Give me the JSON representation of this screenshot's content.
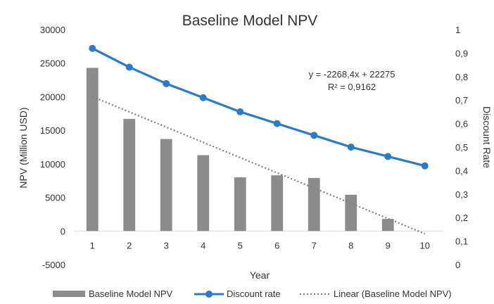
{
  "chart_data": {
    "type": "bar",
    "title": "Baseline Model NPV",
    "xlabel": "Year",
    "ylabel": "NPV (Million USD)",
    "y2label": "Discount Rate",
    "categories": [
      "1",
      "2",
      "3",
      "4",
      "5",
      "6",
      "7",
      "8",
      "9",
      "10"
    ],
    "ylim": [
      -5000,
      30000
    ],
    "yticks": [
      -5000,
      0,
      5000,
      10000,
      15000,
      20000,
      25000,
      30000
    ],
    "ytick_labels": [
      "-5000",
      "0",
      "5000",
      "10000",
      "15000",
      "20000",
      "25000",
      "30000"
    ],
    "y2lim": [
      0,
      1
    ],
    "y2ticks": [
      0,
      0.1,
      0.2,
      0.3,
      0.4,
      0.5,
      0.6,
      0.7,
      0.8,
      0.9,
      1
    ],
    "y2tick_labels": [
      "0",
      "0,1",
      "0,2",
      "0,3",
      "0,4",
      "0,5",
      "0,6",
      "0,7",
      "0,8",
      "0,9",
      "1"
    ],
    "series": [
      {
        "name": "Baseline Model NPV",
        "type": "bar",
        "axis": "left",
        "values": [
          24300,
          16700,
          13700,
          11300,
          8000,
          8300,
          7900,
          5400,
          1800,
          0
        ]
      },
      {
        "name": "Discount rate",
        "type": "line",
        "axis": "right",
        "values": [
          0.92,
          0.84,
          0.77,
          0.71,
          0.65,
          0.6,
          0.55,
          0.5,
          0.46,
          0.42
        ]
      }
    ],
    "trendline": {
      "name": "Linear (Baseline Model NPV)",
      "slope": -2268.4,
      "intercept": 22275,
      "x_range": [
        1,
        10
      ],
      "equation_label": "y = -2268,4x + 22275",
      "r2_label": "R² = 0,9162"
    },
    "legend_position": "bottom",
    "colors": {
      "bar": "#8c8c8c",
      "line": "#2b7bc8",
      "trend": "#7f7f7f",
      "text": "#333333"
    }
  }
}
